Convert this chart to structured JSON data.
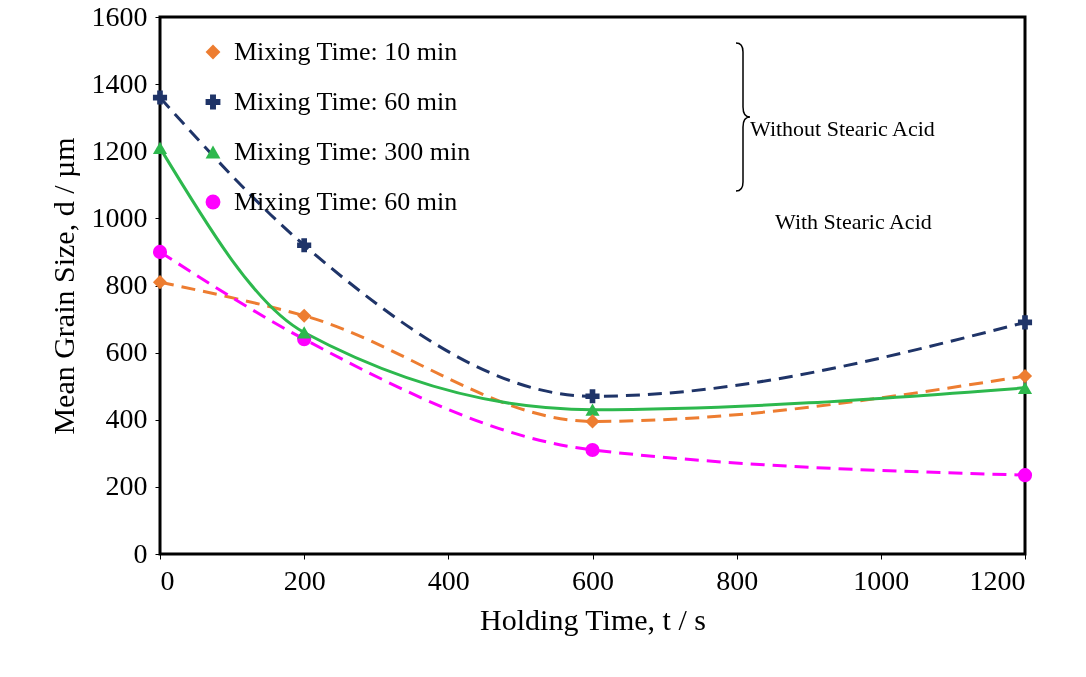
{
  "chart_data": {
    "type": "line",
    "xlabel": "Holding Time, t / s",
    "ylabel": "Mean Grain Size, d / µm",
    "x": [
      0,
      200,
      600,
      1200
    ],
    "series": [
      {
        "name": "Mixing Time: 10 min",
        "color": "#ed7d31",
        "values": [
          810,
          710,
          395,
          530
        ],
        "marker": "diamond",
        "line_style": "dashed"
      },
      {
        "name": "Mixing Time: 60 min",
        "color": "#1f3468",
        "values": [
          1360,
          920,
          470,
          690
        ],
        "marker": "cross",
        "line_style": "dashed"
      },
      {
        "name": "Mixing Time: 300 min",
        "color": "#2db84d",
        "values": [
          1210,
          660,
          430,
          495
        ],
        "marker": "triangle",
        "line_style": "solid"
      },
      {
        "name": "Mixing Time: 60 min",
        "color": "#ff00ff",
        "values": [
          900,
          640,
          310,
          235
        ],
        "marker": "circle",
        "line_style": "dashed"
      }
    ],
    "xlim": [
      0,
      1200
    ],
    "xticks": [
      0,
      200,
      400,
      600,
      800,
      1000,
      1200
    ],
    "ylim": [
      0,
      1600
    ],
    "yticks": [
      0,
      200,
      400,
      600,
      800,
      1000,
      1200,
      1400,
      1600
    ],
    "grid": false,
    "legend": "top",
    "annotations": [
      "Without Stearic Acid",
      "With Stearic Acid"
    ]
  }
}
